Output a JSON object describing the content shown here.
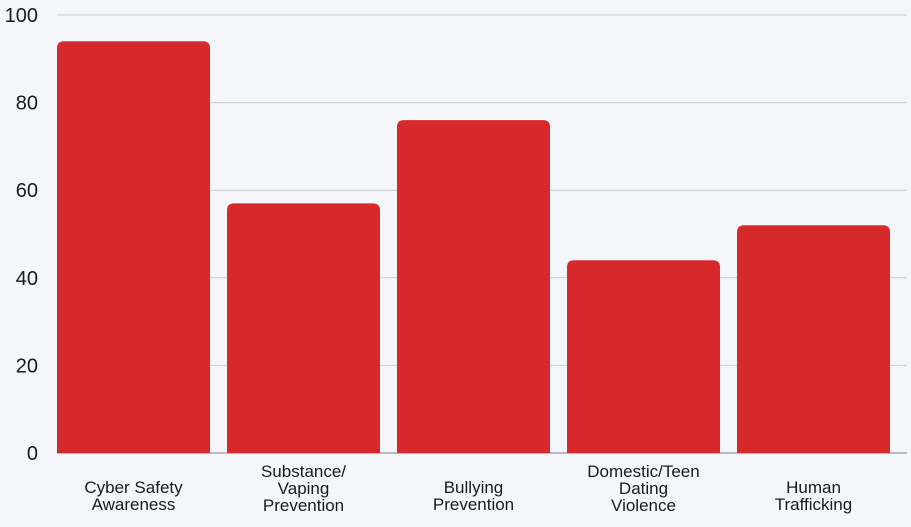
{
  "chart_data": {
    "type": "bar",
    "title": "",
    "xlabel": "",
    "ylabel": "",
    "categories": [
      [
        "Cyber Safety",
        "Awareness"
      ],
      [
        "Substance/",
        "Vaping",
        "Prevention"
      ],
      [
        "Bullying",
        "Prevention"
      ],
      [
        "Domestic/Teen",
        "Dating",
        "Violence"
      ],
      [
        "Human",
        "Trafficking"
      ]
    ],
    "values": [
      94,
      57,
      76,
      44,
      52
    ],
    "ylim": [
      0,
      100
    ],
    "yticks": [
      0,
      20,
      40,
      60,
      80,
      100
    ],
    "grid": true,
    "legend": "none",
    "bar_color": "#d7282c"
  }
}
